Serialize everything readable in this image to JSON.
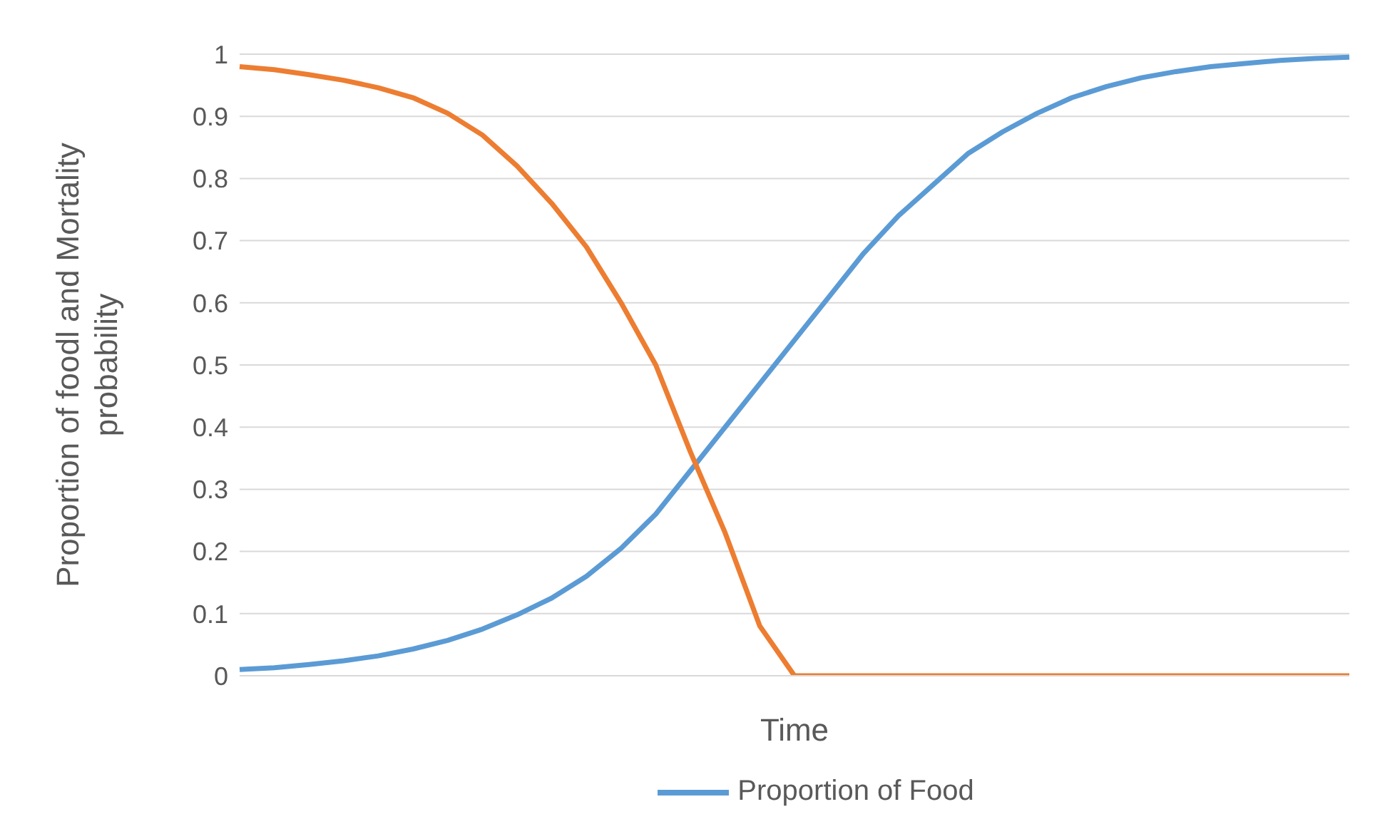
{
  "chart_data": {
    "type": "line",
    "xlabel": "Time",
    "ylabel": "Proportion of foodl and Mortality probability",
    "categories": [
      null,
      null,
      null,
      null,
      null,
      null,
      null,
      null,
      null,
      null,
      null,
      null,
      null,
      null,
      null,
      null,
      null,
      null,
      null,
      null,
      null,
      null,
      null,
      null,
      null,
      null,
      null,
      null,
      null,
      null,
      null,
      null,
      null
    ],
    "series": [
      {
        "name": "Proportion of Food",
        "color": "#5b9bd5",
        "values": [
          0.01,
          0.013,
          0.018,
          0.024,
          0.032,
          0.043,
          0.057,
          0.075,
          0.098,
          0.125,
          0.16,
          0.205,
          0.26,
          0.33,
          0.4,
          0.47,
          0.54,
          0.61,
          0.68,
          0.74,
          0.79,
          0.84,
          0.875,
          0.905,
          0.93,
          0.948,
          0.962,
          0.972,
          0.98,
          0.985,
          0.99,
          0.993,
          0.995
        ]
      },
      {
        "color": "#ed7d31",
        "values": [
          0.98,
          0.975,
          0.967,
          0.958,
          0.946,
          0.93,
          0.905,
          0.87,
          0.82,
          0.76,
          0.69,
          0.6,
          0.5,
          0.36,
          0.23,
          0.08,
          0,
          0,
          0,
          0,
          0,
          0,
          0,
          0,
          0,
          0,
          0,
          0,
          0,
          0,
          0,
          0,
          0
        ]
      }
    ],
    "ylim": [
      0,
      1
    ],
    "yticks": [
      0,
      0.1,
      0.2,
      0.3,
      0.4,
      0.5,
      0.6,
      0.7,
      0.8,
      0.9,
      1
    ],
    "grid": "y",
    "legend": "bottom",
    "marker": "none",
    "line_style": "solid"
  }
}
